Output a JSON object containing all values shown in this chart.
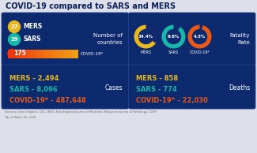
{
  "title": "COVID-19 compared to SARS and MERS",
  "bg_color": "#dde0e8",
  "dark_blue": "#0a1f5c",
  "panel_blue": "#0d2a6e",
  "mers_color": "#e8b820",
  "sars_color": "#18b8a8",
  "covid_color": "#e85818",
  "countries": {
    "MERS": 27,
    "SARS": 29,
    "COVID": 175
  },
  "fatality": {
    "MERS": 34.4,
    "SARS": 9.6,
    "COVID": 4.5
  },
  "cases": {
    "MERS": "2,494",
    "SARS": "8,096",
    "COVID": "487,648"
  },
  "deaths": {
    "MERS": "858",
    "SARS": "774",
    "COVID": "22,030"
  },
  "source_text": "Sources: Johns Hopkins, CDC, WHO, New England Journal of Medicine, Malaysian Journal of Pathology, CCRP",
  "footnote": "*As of March 26, 2020"
}
